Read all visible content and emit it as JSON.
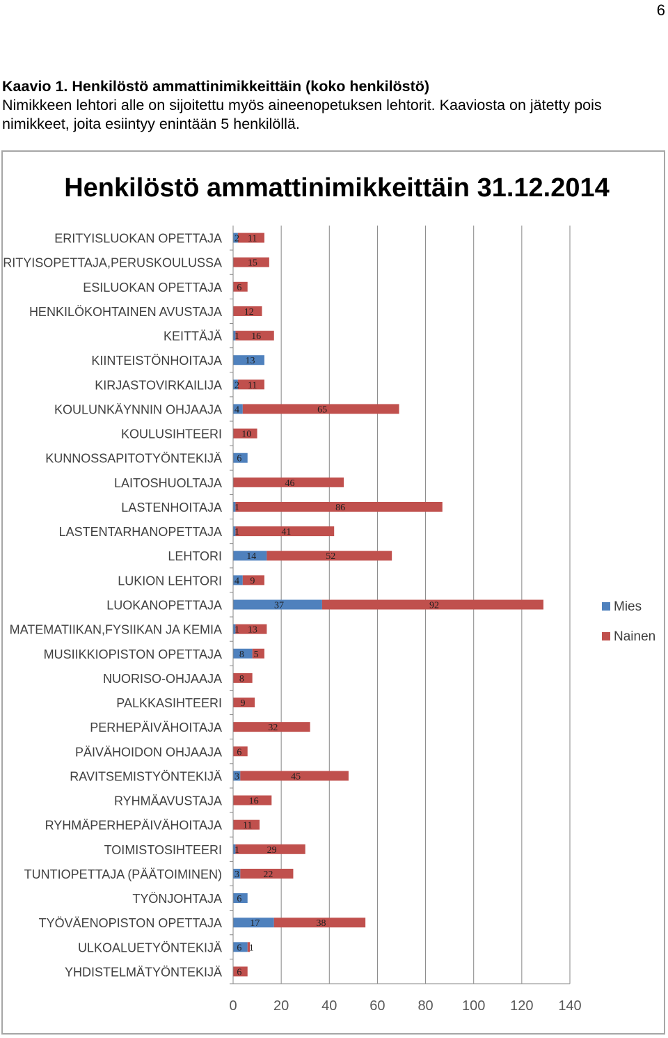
{
  "page_number": "6",
  "caption": {
    "title": "Kaavio 1.  Henkilöstö ammattinimikkeittäin (koko henkilöstö)",
    "body": "Nimikkeen lehtori alle on sijoitettu myös aineenopetuksen lehtorit. Kaaviosta on jätetty pois nimikkeet, joita esiintyy enintään 5 henkilöllä."
  },
  "chart_data": {
    "type": "bar",
    "orientation": "horizontal",
    "stacked": true,
    "title": "Henkilöstö ammattinimikkeittäin 31.12.2014",
    "xlim": [
      0,
      140
    ],
    "xticks": [
      0,
      20,
      40,
      60,
      80,
      100,
      120,
      140
    ],
    "grid": "vertical",
    "legend_position": "right",
    "categories": [
      "ERITYISLUOKAN OPETTAJA",
      "ERITYISOPETTAJA,PERUSKOULUSSA",
      "ESILUOKAN OPETTAJA",
      "HENKILÖKOHTAINEN AVUSTAJA",
      "KEITTÄJÄ",
      "KIINTEISTÖNHOITAJA",
      "KIRJASTOVIRKAILIJA",
      "KOULUNKÄYNNIN OHJAAJA",
      "KOULUSIHTEERI",
      "KUNNOSSAPITOTYÖNTEKIJÄ",
      "LAITOSHUOLTAJA",
      "LASTENHOITAJA",
      "LASTENTARHANOPETTAJA",
      "LEHTORI",
      "LUKION LEHTORI",
      "LUOKANOPETTAJA",
      "MATEMATIIKAN,FYSIIKAN JA KEMIA",
      "MUSIIKKIOPISTON OPETTAJA",
      "NUORISO-OHJAAJA",
      "PALKKASIHTEERI",
      "PERHEPÄIVÄHOITAJA",
      "PÄIVÄHOIDON OHJAAJA",
      "RAVITSEMISTYÖNTEKIJÄ",
      "RYHMÄAVUSTAJA",
      "RYHMÄPERHEPÄIVÄHOITAJA",
      "TOIMISTOSIHTEERI",
      "TUNTIOPETTAJA (PÄÄTOIMINEN)",
      "TYÖNJOHTAJA",
      "TYÖVÄENOPISTON OPETTAJA",
      "ULKOALUETYÖNTEKIJÄ",
      "YHDISTELMÄTYÖNTEKIJÄ"
    ],
    "series": [
      {
        "name": "Mies",
        "color": "#4f81bd",
        "values": [
          2,
          null,
          null,
          null,
          1,
          13,
          2,
          4,
          null,
          6,
          null,
          1,
          1,
          14,
          4,
          37,
          1,
          8,
          null,
          null,
          null,
          null,
          3,
          null,
          null,
          1,
          3,
          6,
          17,
          6,
          null
        ]
      },
      {
        "name": "Nainen",
        "color": "#c0504d",
        "values": [
          11,
          15,
          6,
          12,
          16,
          null,
          11,
          65,
          10,
          null,
          46,
          86,
          41,
          52,
          9,
          92,
          13,
          5,
          8,
          9,
          32,
          6,
          45,
          16,
          11,
          29,
          22,
          null,
          38,
          1,
          6
        ]
      }
    ]
  }
}
